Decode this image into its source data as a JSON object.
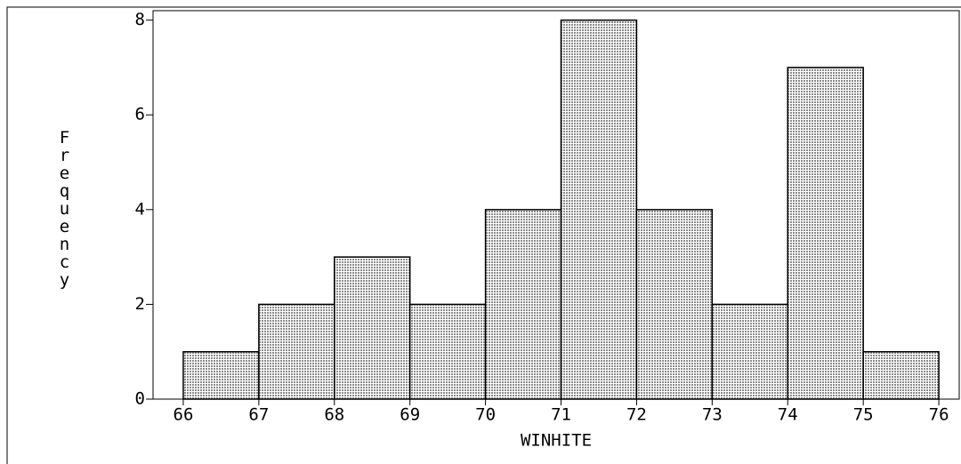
{
  "chart_data": {
    "type": "histogram",
    "x_label": "WINHITE",
    "y_label": "Frequency",
    "bins": [
      66,
      67,
      68,
      69,
      70,
      71,
      72,
      73,
      74,
      75,
      76
    ],
    "values": [
      1,
      2,
      3,
      2,
      4,
      8,
      4,
      2,
      7,
      1
    ],
    "color": "#c8c8c8",
    "xlim": [
      65.6,
      76.27
    ],
    "xticks": [
      66,
      67,
      68,
      69,
      70,
      71,
      72,
      73,
      74,
      75,
      76
    ],
    "ylim": [
      0,
      8.2
    ],
    "yticks": [
      0,
      2,
      4,
      6,
      8
    ],
    "grid": false
  }
}
